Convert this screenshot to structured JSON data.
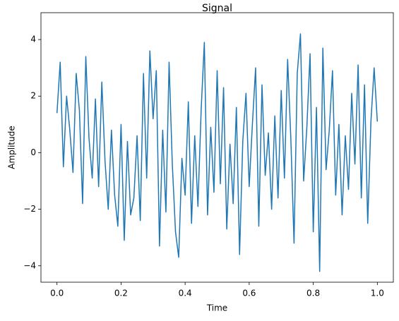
{
  "chart_data": {
    "type": "line",
    "title": "Signal",
    "xlabel": "Time",
    "ylabel": "Amplitude",
    "color": "#1f77b4",
    "x": [
      0,
      0.01,
      0.02,
      0.03,
      0.04,
      0.05,
      0.06,
      0.07,
      0.08,
      0.09,
      0.1,
      0.11,
      0.12,
      0.13,
      0.14,
      0.15,
      0.16,
      0.17,
      0.18,
      0.19,
      0.2,
      0.21,
      0.22,
      0.23,
      0.24,
      0.25,
      0.26,
      0.27,
      0.28,
      0.29,
      0.3,
      0.31,
      0.32,
      0.33,
      0.34,
      0.35,
      0.36,
      0.37,
      0.38,
      0.39,
      0.4,
      0.41,
      0.42,
      0.43,
      0.44,
      0.45,
      0.46,
      0.47,
      0.48,
      0.49,
      0.5,
      0.51,
      0.52,
      0.53,
      0.54,
      0.55,
      0.56,
      0.57,
      0.58,
      0.59,
      0.6,
      0.61,
      0.62,
      0.63,
      0.64,
      0.65,
      0.66,
      0.67,
      0.68,
      0.69,
      0.7,
      0.71,
      0.72,
      0.73,
      0.74,
      0.75,
      0.76,
      0.77,
      0.78,
      0.79,
      0.8,
      0.81,
      0.82,
      0.83,
      0.84,
      0.85,
      0.86,
      0.87,
      0.88,
      0.89,
      0.9,
      0.91,
      0.92,
      0.93,
      0.94,
      0.95,
      0.96,
      0.97,
      0.98,
      0.99,
      1
    ],
    "values": [
      1.4,
      3.2,
      -0.5,
      2.0,
      0.8,
      -0.7,
      2.8,
      1.5,
      -1.8,
      3.4,
      0.5,
      -0.9,
      1.9,
      -1.2,
      2.5,
      -0.3,
      -2.0,
      0.8,
      -1.5,
      -2.6,
      1.0,
      -3.1,
      0.4,
      -2.2,
      -1.6,
      0.6,
      -2.4,
      2.8,
      -0.9,
      3.6,
      1.2,
      2.9,
      -3.3,
      0.8,
      -2.1,
      3.2,
      -0.4,
      -2.8,
      -3.7,
      -0.2,
      -1.5,
      1.8,
      -2.5,
      0.6,
      -1.9,
      1.5,
      3.9,
      -2.2,
      0.9,
      -1.4,
      2.9,
      -1.1,
      2.3,
      -2.7,
      0.3,
      -1.8,
      1.6,
      -3.6,
      0.4,
      2.1,
      -1.2,
      1.0,
      3.0,
      -2.6,
      2.4,
      -0.8,
      0.7,
      -2.0,
      1.3,
      -1.6,
      2.2,
      -0.9,
      3.3,
      0.5,
      -3.2,
      2.8,
      4.2,
      -1.0,
      0.9,
      3.5,
      -2.8,
      1.6,
      -4.2,
      3.7,
      -0.6,
      0.8,
      2.9,
      -1.5,
      1.0,
      -2.2,
      0.6,
      -1.3,
      2.1,
      -0.4,
      3.1,
      -1.6,
      2.4,
      -2.5,
      1.1,
      3.0,
      1.1
    ],
    "xlim": [
      -0.05,
      1.05
    ],
    "xticks": [
      {
        "value": 0,
        "label": "0.0"
      },
      0.2,
      0.4,
      0.6,
      0.8,
      {
        "value": 1,
        "label": "1.0"
      }
    ],
    "ylim": [
      -4.58,
      4.95
    ],
    "yticks": [
      {
        "value": -4,
        "label": "−4"
      },
      {
        "value": -2,
        "label": "−2"
      },
      0,
      2,
      4
    ]
  }
}
